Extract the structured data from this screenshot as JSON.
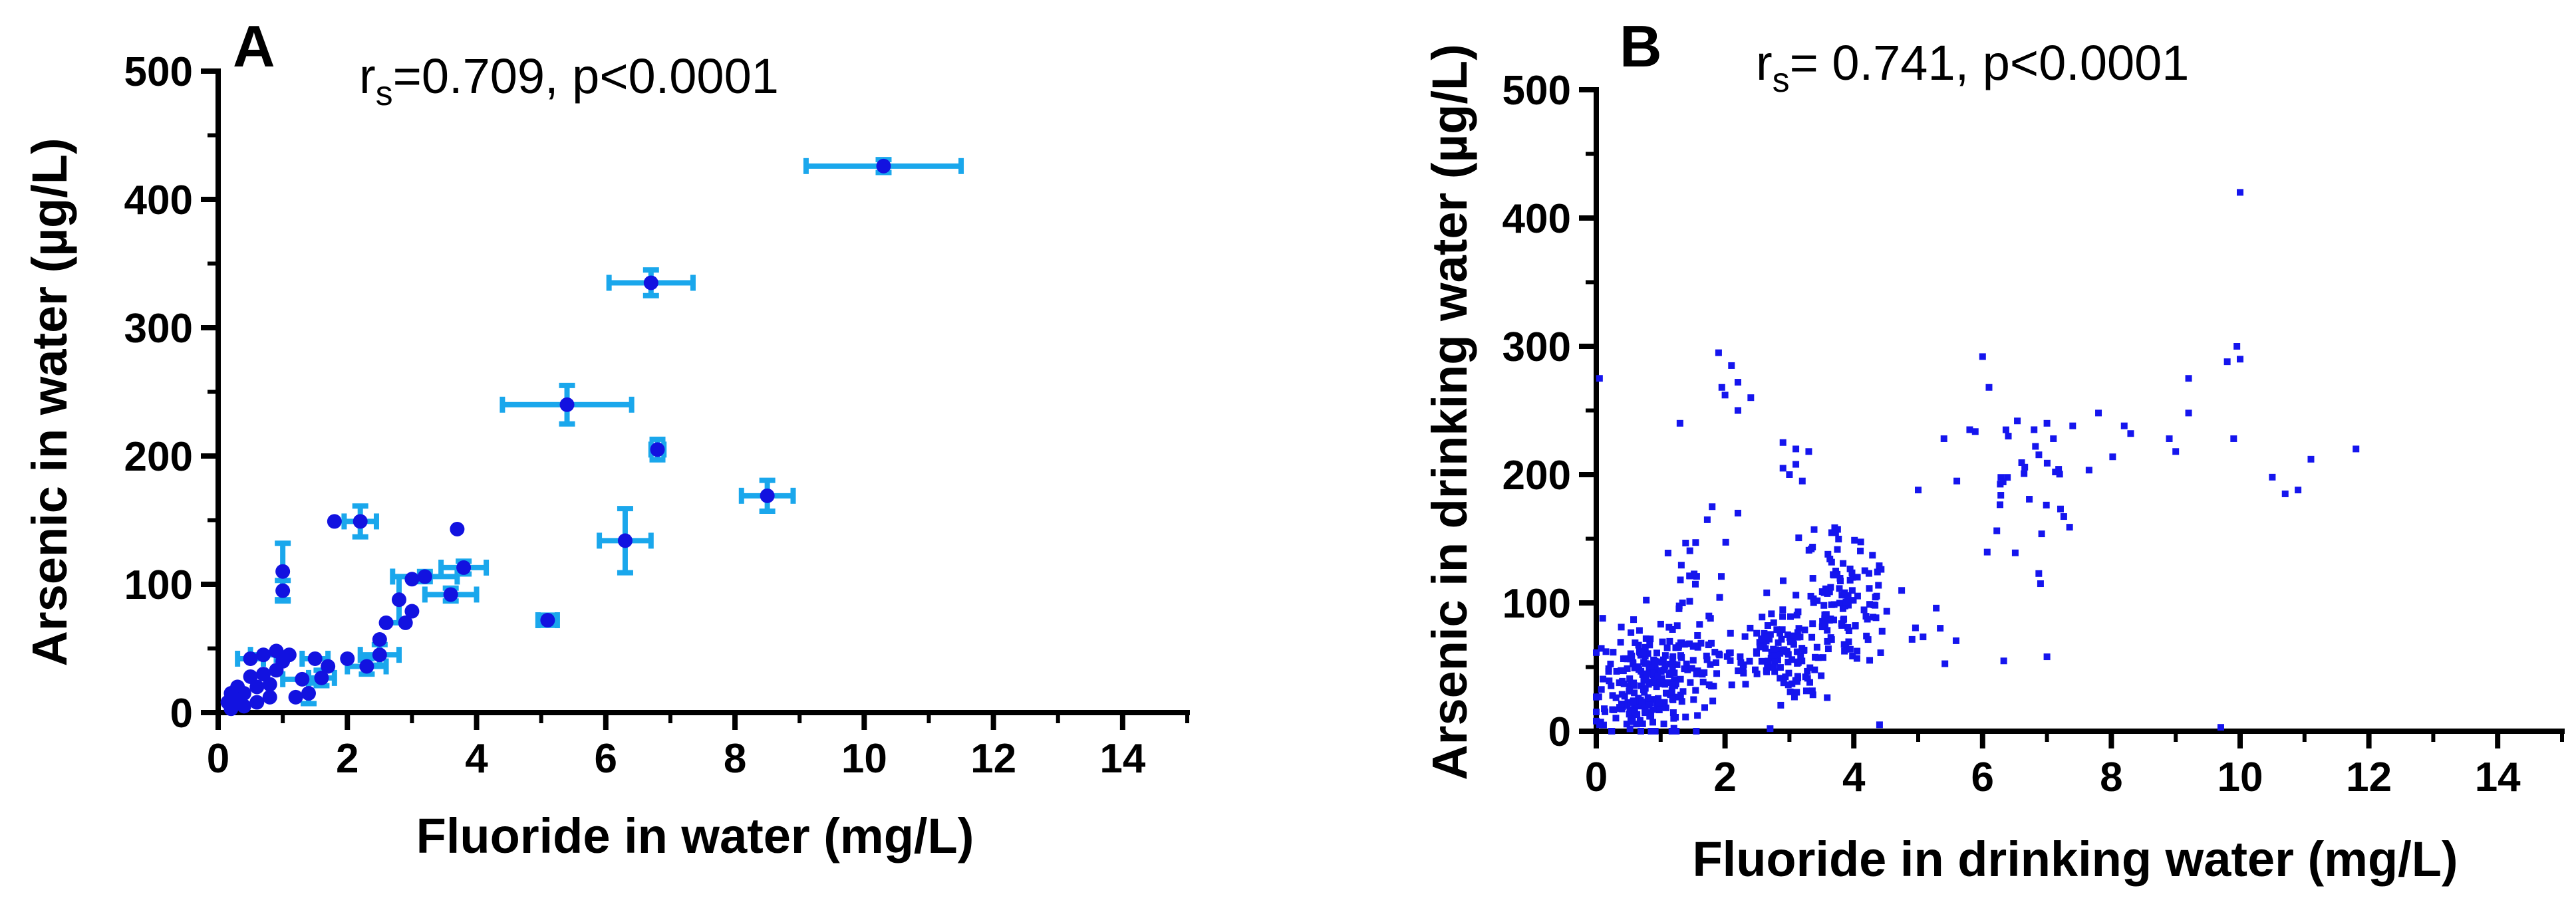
{
  "chart_data": [
    {
      "type": "scatter",
      "panel": "A",
      "annotation": {
        "r_symbol": "r",
        "r_sub": "s",
        "text": "=0.709, p<0.0001"
      },
      "xlabel": "Fluoride in water  (mg/L)",
      "ylabel": "Arsenic in water (µg/L)",
      "xlim": [
        0,
        15
      ],
      "ylim": [
        0,
        500
      ],
      "xticks": [
        0,
        2,
        4,
        6,
        8,
        10,
        12,
        14
      ],
      "yticks": [
        0,
        100,
        200,
        300,
        400,
        500
      ],
      "colors": {
        "point": "#1212e0",
        "error": "#1aa7ec"
      },
      "points": [
        {
          "x": 10.3,
          "y": 426,
          "xerr": 1.2,
          "yerr": 5
        },
        {
          "x": 6.7,
          "y": 335,
          "xerr": 0.65,
          "yerr": 10
        },
        {
          "x": 5.4,
          "y": 240,
          "xerr": 1.0,
          "yerr": 15
        },
        {
          "x": 6.8,
          "y": 205,
          "xerr": 0.1,
          "yerr": 8
        },
        {
          "x": 8.5,
          "y": 169,
          "xerr": 0.4,
          "yerr": 12
        },
        {
          "x": 6.3,
          "y": 134,
          "xerr": 0.4,
          "yerr": 25
        },
        {
          "x": 5.1,
          "y": 72,
          "xerr": 0.15,
          "yerr": 4
        },
        {
          "x": 3.7,
          "y": 143
        },
        {
          "x": 3.8,
          "y": 113,
          "xerr": 0.35,
          "yerr": 5
        },
        {
          "x": 3.6,
          "y": 92,
          "xerr": 0.4,
          "yerr": 5
        },
        {
          "x": 3.2,
          "y": 106,
          "xerr": 0.5,
          "yerr": 4
        },
        {
          "x": 3.0,
          "y": 104
        },
        {
          "x": 2.8,
          "y": 88,
          "yerr": 18
        },
        {
          "x": 3.0,
          "y": 79
        },
        {
          "x": 2.6,
          "y": 70
        },
        {
          "x": 2.9,
          "y": 70
        },
        {
          "x": 2.5,
          "y": 57
        },
        {
          "x": 2.5,
          "y": 45,
          "xerr": 0.3,
          "yerr": 8
        },
        {
          "x": 2.3,
          "y": 36,
          "xerr": 0.3,
          "yerr": 6
        },
        {
          "x": 2.2,
          "y": 149,
          "xerr": 0.25,
          "yerr": 12
        },
        {
          "x": 1.8,
          "y": 149
        },
        {
          "x": 1.0,
          "y": 110,
          "yerr": 22
        },
        {
          "x": 1.0,
          "y": 95,
          "yerr": 8
        },
        {
          "x": 2.0,
          "y": 42
        },
        {
          "x": 1.7,
          "y": 36
        },
        {
          "x": 1.6,
          "y": 27,
          "xerr": 0.2,
          "yerr": 6
        },
        {
          "x": 1.5,
          "y": 42,
          "xerr": 0.2
        },
        {
          "x": 1.4,
          "y": 15,
          "yerr": 8
        },
        {
          "x": 1.3,
          "y": 26,
          "xerr": 0.3
        },
        {
          "x": 1.2,
          "y": 12
        },
        {
          "x": 1.1,
          "y": 45
        },
        {
          "x": 1.0,
          "y": 40
        },
        {
          "x": 0.9,
          "y": 48
        },
        {
          "x": 0.9,
          "y": 33
        },
        {
          "x": 0.8,
          "y": 22
        },
        {
          "x": 0.8,
          "y": 12
        },
        {
          "x": 0.7,
          "y": 45,
          "xerr": 0.2
        },
        {
          "x": 0.7,
          "y": 30
        },
        {
          "x": 0.6,
          "y": 20
        },
        {
          "x": 0.6,
          "y": 8
        },
        {
          "x": 0.5,
          "y": 42,
          "xerr": 0.2
        },
        {
          "x": 0.5,
          "y": 28
        },
        {
          "x": 0.4,
          "y": 15
        },
        {
          "x": 0.4,
          "y": 5
        },
        {
          "x": 0.3,
          "y": 20
        },
        {
          "x": 0.3,
          "y": 10
        },
        {
          "x": 0.2,
          "y": 3
        },
        {
          "x": 0.2,
          "y": 15
        },
        {
          "x": 0.15,
          "y": 8
        }
      ]
    },
    {
      "type": "scatter",
      "panel": "B",
      "annotation": {
        "r_symbol": "r",
        "r_sub": "s",
        "text": "= 0.741, p<0.0001"
      },
      "xlabel": "Fluoride in drinking water (mg/L)",
      "ylabel": "Arsenic in drinking water (µg/L)",
      "xlim": [
        0,
        15
      ],
      "ylim": [
        0,
        500
      ],
      "xticks": [
        0,
        2,
        4,
        6,
        8,
        10,
        12,
        14
      ],
      "yticks": [
        0,
        100,
        200,
        300,
        400,
        500
      ],
      "colors": {
        "point": "#1515ee"
      },
      "clusters": [
        {
          "cx": 0.8,
          "cy": 42,
          "sx": 0.35,
          "sy": 18,
          "n": 170
        },
        {
          "cx": 0.6,
          "cy": 15,
          "sx": 0.35,
          "sy": 10,
          "n": 55
        },
        {
          "cx": 1.5,
          "cy": 95,
          "sx": 0.25,
          "sy": 30,
          "n": 40
        },
        {
          "cx": 1.8,
          "cy": 50,
          "sx": 0.3,
          "sy": 12,
          "n": 30
        },
        {
          "cx": 2.8,
          "cy": 62,
          "sx": 0.35,
          "sy": 14,
          "n": 90
        },
        {
          "cx": 3.1,
          "cy": 35,
          "sx": 0.25,
          "sy": 10,
          "n": 20
        },
        {
          "cx": 3.9,
          "cy": 95,
          "sx": 0.35,
          "sy": 22,
          "n": 95
        },
        {
          "cx": 3.6,
          "cy": 130,
          "sx": 0.35,
          "sy": 18,
          "n": 25
        },
        {
          "cx": 4.9,
          "cy": 80,
          "sx": 0.6,
          "sy": 15,
          "n": 12
        },
        {
          "cx": 6.6,
          "cy": 190,
          "sx": 0.45,
          "sy": 30,
          "n": 30
        }
      ],
      "points": [
        [
          0.05,
          275
        ],
        [
          1.3,
          240
        ],
        [
          1.9,
          295
        ],
        [
          2.1,
          285
        ],
        [
          1.95,
          268
        ],
        [
          2.2,
          272
        ],
        [
          2.0,
          262
        ],
        [
          2.4,
          260
        ],
        [
          2.2,
          250
        ],
        [
          2.9,
          225
        ],
        [
          3.1,
          220
        ],
        [
          3.3,
          218
        ],
        [
          2.9,
          205
        ],
        [
          3.0,
          200
        ],
        [
          3.2,
          195
        ],
        [
          3.1,
          208
        ],
        [
          5.0,
          188
        ],
        [
          5.6,
          195
        ],
        [
          5.4,
          228
        ],
        [
          6.0,
          292
        ],
        [
          6.1,
          268
        ],
        [
          5.8,
          235
        ],
        [
          6.4,
          230
        ],
        [
          6.8,
          235
        ],
        [
          7.0,
          240
        ],
        [
          7.1,
          228
        ],
        [
          7.4,
          238
        ],
        [
          7.8,
          248
        ],
        [
          8.2,
          238
        ],
        [
          8.3,
          232
        ],
        [
          8.9,
          228
        ],
        [
          9.0,
          218
        ],
        [
          9.2,
          248
        ],
        [
          9.2,
          275
        ],
        [
          9.8,
          288
        ],
        [
          9.95,
          300
        ],
        [
          10.0,
          290
        ],
        [
          9.9,
          228
        ],
        [
          10.0,
          420
        ],
        [
          10.5,
          198
        ],
        [
          10.7,
          185
        ],
        [
          10.9,
          188
        ],
        [
          11.1,
          212
        ],
        [
          11.8,
          220
        ],
        [
          6.9,
          115
        ],
        [
          7.0,
          58
        ],
        [
          4.4,
          5
        ],
        [
          2.7,
          2
        ],
        [
          9.7,
          3
        ],
        [
          0.05,
          5
        ],
        [
          0.0,
          15
        ],
        [
          0.1,
          88
        ],
        [
          0.15,
          62
        ],
        [
          1.8,
          175
        ],
        [
          2.2,
          170
        ]
      ]
    }
  ]
}
